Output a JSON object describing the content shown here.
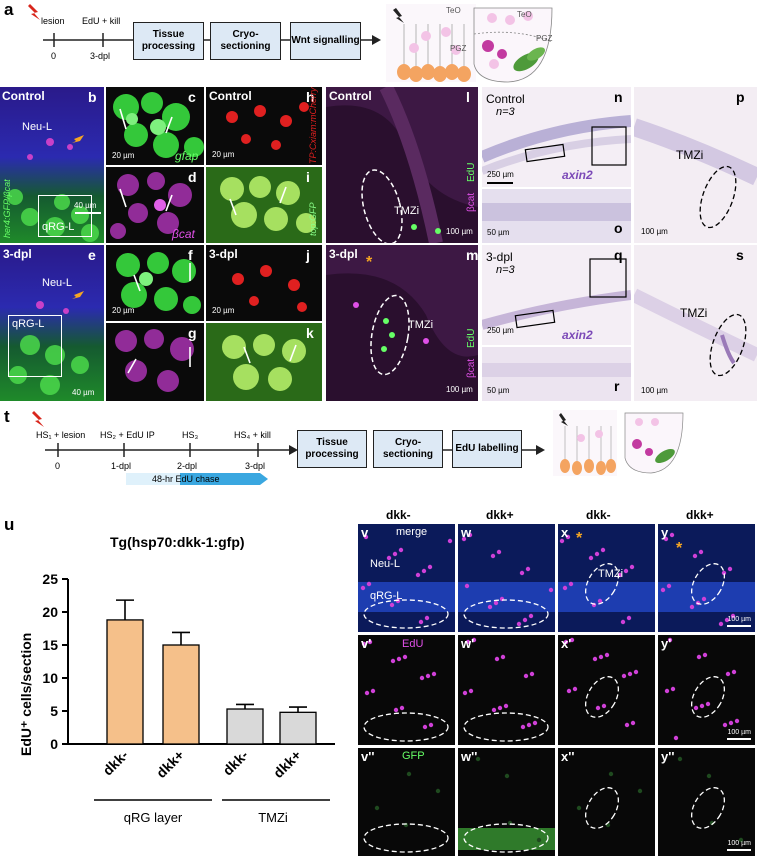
{
  "panel_a": {
    "label": "a",
    "lesion": "lesion",
    "edu_kill": "EdU + kill",
    "t0": "0",
    "t3": "3-dpl",
    "boxes": [
      "Tissue processing",
      "Cryo-sectioning",
      "Wnt signalling"
    ]
  },
  "cartoon": {
    "teo": "TeO",
    "pgz": "PGZ"
  },
  "micro_top": {
    "b": {
      "letter": "b",
      "cond": "Control",
      "neu": "Neu-L",
      "qrg": "qRG-L",
      "side": "her4:GFP/βcat",
      "scale": "40 µm"
    },
    "c": {
      "letter": "c",
      "tag": "gfap",
      "scale": "20 µm"
    },
    "d": {
      "letter": "d",
      "tag": "βcat"
    },
    "e": {
      "letter": "e",
      "cond": "3-dpl",
      "neu": "Neu-L",
      "qrg": "qRG-L",
      "scale": "40 µm"
    },
    "f": {
      "letter": "f",
      "scale": "20 µm"
    },
    "g": {
      "letter": "g"
    },
    "h": {
      "letter": "h",
      "cond": "Control",
      "side": "TP:Cxiam:mCherry",
      "scale": "20 µm"
    },
    "i": {
      "letter": "i",
      "side": "top:GFP"
    },
    "j": {
      "letter": "j",
      "cond": "3-dpl",
      "scale": "20 µm"
    },
    "k": {
      "letter": "k"
    },
    "l": {
      "letter": "l",
      "cond": "Control",
      "tmzi": "TMZi",
      "side_a": "βcat",
      "side_b": "EdU",
      "scale": "100 µm"
    },
    "m": {
      "letter": "m",
      "cond": "3-dpl",
      "star": "*",
      "tmzi": "TMZi",
      "side_a": "βcat",
      "side_b": "EdU",
      "scale": "100 µm"
    },
    "n": {
      "letter": "n",
      "cond": "Control",
      "n": "n=3",
      "gene": "axin2",
      "scale": "250 µm"
    },
    "o": {
      "letter": "o",
      "scale": "50 µm"
    },
    "p": {
      "letter": "p",
      "tmzi": "TMZi",
      "scale": "100 µm"
    },
    "q": {
      "letter": "q",
      "cond": "3-dpl",
      "n": "n=3",
      "gene": "axin2",
      "scale": "250 µm"
    },
    "r": {
      "letter": "r",
      "scale": "50 µm"
    },
    "s": {
      "letter": "s",
      "tmzi": "TMZi",
      "scale": "100 µm"
    }
  },
  "panel_t": {
    "label": "t",
    "hs1": "HS₁ + lesion",
    "hs2": "HS₂ + EdU IP",
    "hs3": "HS₃",
    "hs4": "HS₄ + kill",
    "t0": "0",
    "t1": "1-dpl",
    "t2": "2-dpl",
    "t3": "3-dpl",
    "chase": "48-hr EdU chase",
    "boxes": [
      "Tissue processing",
      "Cryo-sectioning",
      "EdU labelling"
    ]
  },
  "chart_data": {
    "type": "bar",
    "panel_label": "u",
    "title": "Tg(hsp70:dkk-1:gfp)",
    "ylabel": "EdU⁺ cells/section",
    "ylim": [
      0,
      25
    ],
    "yticks": [
      0,
      5,
      10,
      15,
      20,
      25
    ],
    "categories": [
      "dkk-",
      "dkk+",
      "dkk-",
      "dkk+"
    ],
    "groups": [
      "qRG layer",
      "TMZi"
    ],
    "values": [
      18.8,
      15.0,
      5.3,
      4.8
    ],
    "errors": [
      3.0,
      1.9,
      0.7,
      0.8
    ],
    "colors": {
      "qRG": "#f5c08a",
      "TMZi": "#d9d9d9"
    }
  },
  "grid_v": {
    "cols": [
      "dkk-",
      "dkk+",
      "dkk-",
      "dkk+"
    ],
    "row1": [
      "v",
      "w",
      "x",
      "y"
    ],
    "row2": [
      "v'",
      "w'",
      "x'",
      "y'"
    ],
    "row3": [
      "v''",
      "w''",
      "x''",
      "y''"
    ],
    "merge": "merge",
    "edu": "EdU",
    "gfp": "GFP",
    "neu": "Neu-L",
    "qrg": "qRG-L",
    "tmzi": "TMZi",
    "star": "*",
    "scale": "100 µm"
  }
}
